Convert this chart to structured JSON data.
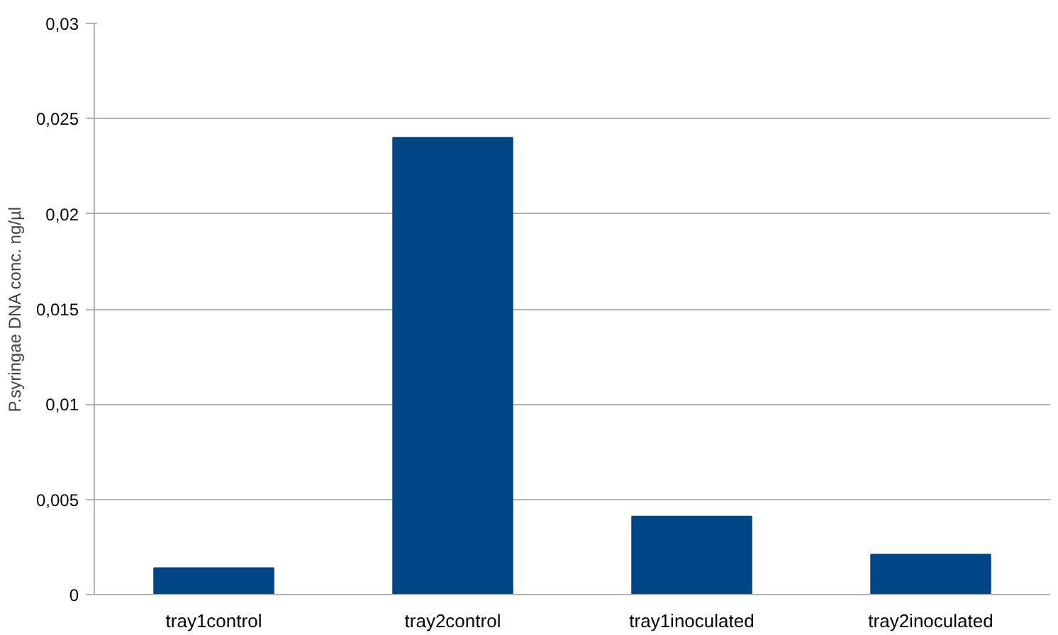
{
  "chart_data": {
    "type": "bar",
    "ylabel": "P.syringae DNA conc. ng/µl",
    "categories": [
      "tray1control",
      "tray2control",
      "tray1inoculated",
      "tray2inoculated"
    ],
    "values": [
      0.0014,
      0.024,
      0.0041,
      0.0021
    ],
    "color": "#004586",
    "ylim": [
      0,
      0.03
    ],
    "yticks": [
      0,
      {
        "value": 0.005,
        "label": "0,005"
      },
      {
        "value": 0.01,
        "label": "0,01"
      },
      {
        "value": 0.015,
        "label": "0,015"
      },
      {
        "value": 0.02,
        "label": "0,02"
      },
      {
        "value": 0.025,
        "label": "0,025"
      },
      {
        "value": 0.03,
        "label": "0,03"
      }
    ],
    "grid": "y"
  }
}
